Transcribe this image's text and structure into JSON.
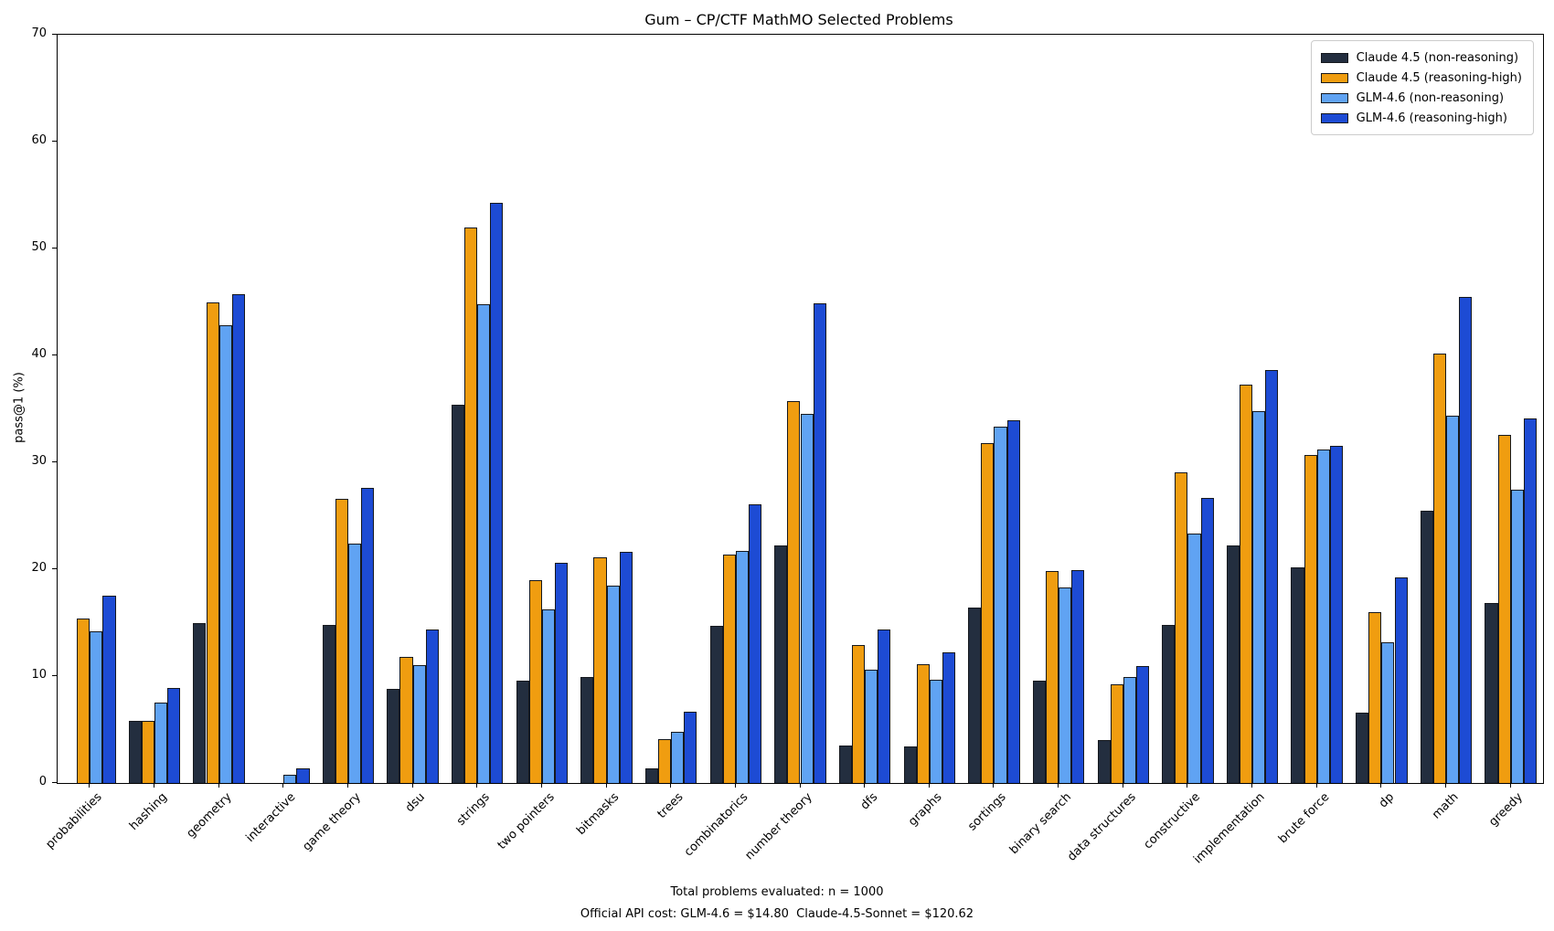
{
  "page_title": "Gum – CP/CTF MathMO Selected Problems",
  "footer": {
    "line1": "Total problems evaluated: n = 1000",
    "line2": "Official API cost: GLM-4.6 = $14.80  Claude-4.5-Sonnet = $120.62"
  },
  "colors": {
    "claude_non_reasoning": "#232e3f",
    "claude_reasoning_high": "#f09d10",
    "glm_non_reasoning": "#60a3f3",
    "glm_reasoning_high": "#1d4bd4",
    "bar_edge": "#15181d",
    "axis": "#000000",
    "legend_border": "#cccccc"
  },
  "chart_data": {
    "type": "bar",
    "title": "Gum – CP/CTF MathMO Selected Problems",
    "xlabel": "",
    "ylabel": "pass@1 (%)",
    "ylim": [
      0,
      70
    ],
    "yticks": [
      0,
      10,
      20,
      30,
      40,
      50,
      60,
      70
    ],
    "grid": false,
    "legend_position": "upper right",
    "x_tick_rotation": 45,
    "categories": [
      "probabilities",
      "hashing",
      "geometry",
      "interactive",
      "game theory",
      "dsu",
      "strings",
      "two pointers",
      "bitmasks",
      "trees",
      "combinatorics",
      "number theory",
      "dfs",
      "graphs",
      "sortings",
      "binary search",
      "data structures",
      "constructive",
      "implementation",
      "brute force",
      "dp",
      "math",
      "greedy"
    ],
    "series": [
      {
        "name": "Claude 4.5 (non-reasoning)",
        "color": "#232e3f",
        "values": [
          0,
          5.8,
          15.0,
          0,
          14.8,
          8.8,
          35.4,
          9.6,
          9.9,
          1.4,
          14.7,
          22.2,
          3.5,
          3.4,
          16.4,
          9.6,
          4.0,
          14.8,
          22.2,
          20.2,
          6.6,
          25.5,
          16.8
        ]
      },
      {
        "name": "Claude 4.5 (reasoning-high)",
        "color": "#f09d10",
        "values": [
          15.4,
          5.8,
          45.0,
          0,
          26.6,
          11.8,
          52.0,
          19.0,
          21.1,
          4.1,
          21.4,
          35.7,
          12.9,
          11.1,
          31.8,
          19.8,
          9.2,
          29.1,
          37.3,
          30.7,
          16.0,
          40.2,
          32.6
        ]
      },
      {
        "name": "GLM-4.6 (non-reasoning)",
        "color": "#60a3f3",
        "values": [
          14.2,
          7.5,
          42.8,
          0.8,
          22.4,
          11.0,
          44.8,
          16.2,
          18.5,
          4.8,
          21.7,
          34.5,
          10.6,
          9.7,
          33.3,
          18.3,
          9.9,
          23.3,
          34.8,
          31.2,
          13.2,
          34.4,
          27.4
        ]
      },
      {
        "name": "GLM-4.6 (reasoning-high)",
        "color": "#1d4bd4",
        "values": [
          17.5,
          8.9,
          45.7,
          1.4,
          27.6,
          14.4,
          54.3,
          20.6,
          21.6,
          6.7,
          26.1,
          44.9,
          14.4,
          12.2,
          33.9,
          19.9,
          10.9,
          26.7,
          38.6,
          31.5,
          19.2,
          45.5,
          34.1
        ]
      }
    ]
  }
}
